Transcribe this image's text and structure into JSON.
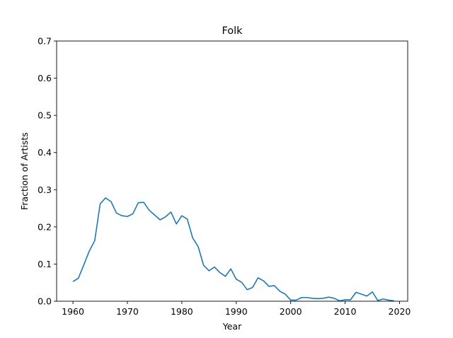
{
  "chart_data": {
    "type": "line",
    "title": "Folk",
    "xlabel": "Year",
    "ylabel": "Fraction of Artists",
    "xlim": [
      1957,
      2021.5
    ],
    "ylim": [
      0,
      0.7
    ],
    "xticks": [
      1960,
      1970,
      1980,
      1990,
      2000,
      2010,
      2020
    ],
    "yticks": [
      0.0,
      0.1,
      0.2,
      0.3,
      0.4,
      0.5,
      0.6,
      0.7
    ],
    "grid": false,
    "legend": "none",
    "series": [
      {
        "color": "#1f77b4",
        "x": [
          1960,
          1961,
          1962,
          1963,
          1964,
          1965,
          1966,
          1967,
          1968,
          1969,
          1970,
          1971,
          1972,
          1973,
          1974,
          1975,
          1976,
          1977,
          1978,
          1979,
          1980,
          1981,
          1982,
          1983,
          1984,
          1985,
          1986,
          1987,
          1988,
          1989,
          1990,
          1991,
          1992,
          1993,
          1994,
          1995,
          1996,
          1997,
          1998,
          1999,
          2000,
          2001,
          2002,
          2003,
          2004,
          2005,
          2006,
          2007,
          2008,
          2009,
          2010,
          2011,
          2012,
          2013,
          2014,
          2015,
          2016,
          2017,
          2018,
          2019
        ],
        "y": [
          0.053,
          0.062,
          0.098,
          0.135,
          0.163,
          0.262,
          0.278,
          0.268,
          0.237,
          0.23,
          0.228,
          0.235,
          0.265,
          0.266,
          0.245,
          0.232,
          0.219,
          0.227,
          0.24,
          0.208,
          0.23,
          0.221,
          0.17,
          0.147,
          0.097,
          0.082,
          0.092,
          0.077,
          0.067,
          0.087,
          0.059,
          0.051,
          0.031,
          0.037,
          0.063,
          0.055,
          0.04,
          0.042,
          0.027,
          0.019,
          0.003,
          0.003,
          0.01,
          0.01,
          0.008,
          0.007,
          0.008,
          0.011,
          0.008,
          0.001,
          0.004,
          0.004,
          0.024,
          0.019,
          0.014,
          0.025,
          0.002,
          0.006,
          0.003,
          0.001
        ]
      }
    ]
  }
}
